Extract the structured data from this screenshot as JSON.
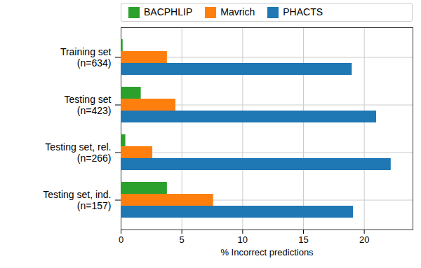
{
  "chart_data": {
    "type": "bar",
    "orientation": "horizontal",
    "categories": [
      "Training set\n(n=634)",
      "Testing set\n(n=423)",
      "Testing set, rel.\n(n=266)",
      "Testing set, ind.\n(n=157)"
    ],
    "series": [
      {
        "name": "BACPHLIP",
        "color": "#2ca02c",
        "values": [
          0.16,
          1.65,
          0.38,
          3.8
        ]
      },
      {
        "name": "Mavrich",
        "color": "#ff7f0e",
        "values": [
          3.8,
          4.5,
          2.6,
          7.6
        ]
      },
      {
        "name": "PHACTS",
        "color": "#1f77b4",
        "values": [
          19.0,
          21.0,
          22.2,
          19.1
        ]
      }
    ],
    "xlim": [
      0,
      24
    ],
    "xticks": [
      0,
      5,
      10,
      15,
      20
    ],
    "x_label": "% Incorrect predictions",
    "grid": true,
    "legend": "top"
  }
}
